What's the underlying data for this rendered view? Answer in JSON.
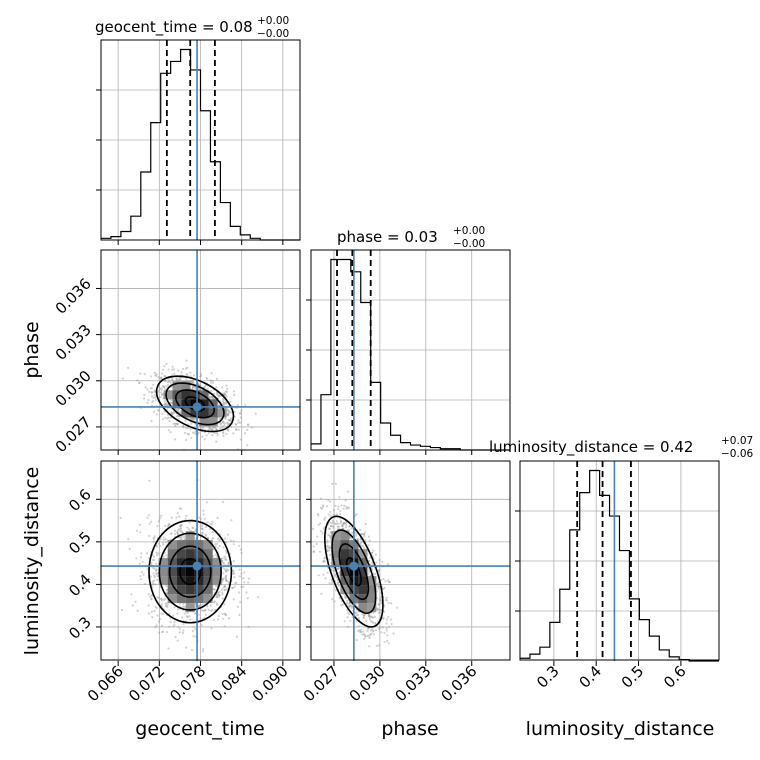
{
  "chart_data": {
    "type": "corner",
    "parameters": [
      "geocent_time",
      "phase",
      "luminosity_distance"
    ],
    "truths": {
      "geocent_time": 0.0775,
      "phase": 0.0283,
      "luminosity_distance": 0.443
    },
    "ranges": {
      "geocent_time": [
        0.0635,
        0.0925
      ],
      "phase": [
        0.0255,
        0.0385
      ],
      "luminosity_distance": [
        0.22,
        0.69
      ]
    },
    "ticks": {
      "geocent_time": {
        "values": [
          0.066,
          0.072,
          0.078,
          0.084,
          0.09
        ],
        "labels": [
          "0.066",
          "0.072",
          "0.078",
          "0.084",
          "0.090"
        ]
      },
      "phase": {
        "values": [
          0.027,
          0.03,
          0.033,
          0.036
        ],
        "labels": [
          "0.027",
          "0.030",
          "0.033",
          "0.036"
        ]
      },
      "luminosity_distance": {
        "values": [
          0.3,
          0.4,
          0.5,
          0.6
        ],
        "labels": [
          "0.3",
          "0.4",
          "0.5",
          "0.6"
        ]
      }
    },
    "axis_labels": {
      "geocent_time": "geocent_time",
      "phase": "phase",
      "luminosity_distance": "luminosity_distance"
    },
    "titles": {
      "geocent_time": {
        "main": "geocent_time = 0.08",
        "plus": "+0.00",
        "minus": "−0.00"
      },
      "phase": {
        "main": "phase = 0.03",
        "plus": "+0.00",
        "minus": "−0.00"
      },
      "luminosity_distance": {
        "main": "luminosity_distance = 0.42",
        "plus": "+0.07",
        "minus": "−0.06"
      }
    },
    "quantiles": {
      "geocent_time": [
        0.0731,
        0.0765,
        0.0801
      ],
      "phase": [
        0.0272,
        0.0282,
        0.0294
      ],
      "luminosity_distance": [
        0.355,
        0.415,
        0.482
      ]
    },
    "histograms": {
      "geocent_time": {
        "edges": [
          0.0635,
          0.06495,
          0.0664,
          0.06785,
          0.0693,
          0.07075,
          0.0722,
          0.07365,
          0.0751,
          0.07655,
          0.078,
          0.07945,
          0.0809,
          0.08235,
          0.0838,
          0.08525,
          0.0867,
          0.08815,
          0.0896,
          0.09105,
          0.0925
        ],
        "counts": [
          1,
          2,
          5,
          14,
          40,
          69,
          98,
          105,
          112,
          100,
          76,
          46,
          22,
          8,
          3,
          1,
          0,
          0,
          0,
          0
        ]
      },
      "phase": {
        "edges": [
          0.0255,
          0.02615,
          0.0268,
          0.02745,
          0.0281,
          0.02875,
          0.0294,
          0.03005,
          0.0307,
          0.03135,
          0.032,
          0.03265,
          0.0333,
          0.03395,
          0.0346,
          0.03525,
          0.0359,
          0.03655,
          0.0372,
          0.03785,
          0.0385
        ],
        "counts": [
          5,
          45,
          155,
          155,
          145,
          120,
          55,
          22,
          12,
          6,
          4,
          3,
          2,
          1,
          1,
          0,
          0,
          0,
          0,
          0
        ]
      },
      "luminosity_distance": {
        "edges": [
          0.22,
          0.2435,
          0.267,
          0.2905,
          0.314,
          0.3375,
          0.361,
          0.3845,
          0.408,
          0.4315,
          0.455,
          0.4785,
          0.502,
          0.5255,
          0.549,
          0.5725,
          0.596,
          0.6195,
          0.643,
          0.6665,
          0.69
        ],
        "counts": [
          2,
          5,
          10,
          28,
          52,
          95,
          122,
          138,
          120,
          105,
          80,
          45,
          30,
          18,
          8,
          3,
          1,
          0,
          0,
          0
        ]
      }
    },
    "scatter_2d": {
      "phase_vs_geocent_time": {
        "center": [
          0.0772,
          0.0285
        ],
        "sigma": [
          0.0028,
          0.0009
        ],
        "corr": -0.45,
        "n": 1400
      },
      "luminosity_distance_vs_geocent_time": {
        "center": [
          0.0765,
          0.43
        ],
        "sigma": [
          0.003,
          0.06
        ],
        "corr": 0.0,
        "n": 1400
      },
      "luminosity_distance_vs_phase": {
        "center": [
          0.0283,
          0.43
        ],
        "sigma": [
          0.00095,
          0.065
        ],
        "corr": -0.6,
        "n": 1400
      }
    },
    "grid": true,
    "colors": {
      "truth": "#4682b4",
      "hist": "#000000",
      "points": "#9a9a9a",
      "grid": "#b0b0b0"
    }
  }
}
